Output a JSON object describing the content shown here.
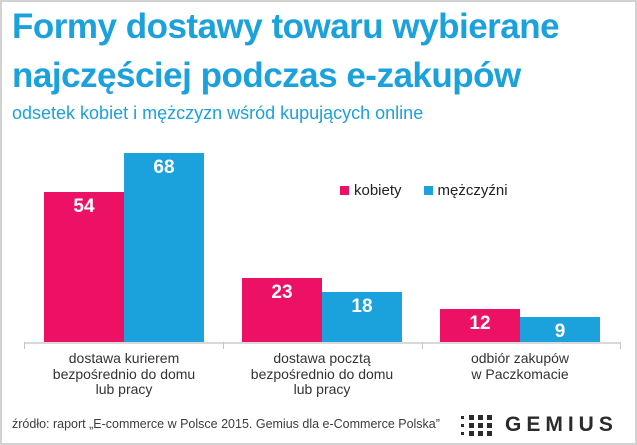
{
  "header": {
    "title_line1": "Formy dostawy towaru wybierane",
    "title_line2": "najczęściej podczas e-zakupów",
    "subtitle": "odsetek kobiet i mężczyzn wśród kupujących online"
  },
  "chart_data": {
    "type": "bar",
    "title": "Formy dostawy towaru wybierane najczęściej podczas e-zakupów",
    "subtitle": "odsetek kobiet i mężczyzn wśród kupujących online",
    "unit": "percent",
    "categories": [
      "dostawa kurierem bezpośrednio do domu lub pracy",
      "dostawa pocztą bezpośrednio do domu lub pracy",
      "odbiór zakupów w Paczkomacie"
    ],
    "category_label_lines": [
      [
        "dostawa kurierem",
        "bezpośrednio do domu",
        "lub pracy"
      ],
      [
        "dostawa pocztą",
        "bezpośrednio do domu",
        "lub pracy"
      ],
      [
        "odbiór zakupów",
        "w Paczkomacie",
        ""
      ]
    ],
    "series": [
      {
        "name": "kobiety",
        "color": "#EC1164",
        "values": [
          54,
          23,
          12
        ]
      },
      {
        "name": "mężczyźni",
        "color": "#1BA1DB",
        "values": [
          68,
          18,
          9
        ]
      }
    ],
    "ylim": [
      0,
      72
    ],
    "grid": false,
    "legend_position": "top-right",
    "value_labels": "inside-top-white"
  },
  "footer": {
    "source": "źródło: raport „E-commerce w Polsce 2015. Gemius dla e-Commerce Polska”",
    "logo_text": "GEMIUS"
  },
  "colors": {
    "accent_blue": "#1BA1DB",
    "accent_pink": "#EC1164",
    "text_dark": "#333333",
    "axis_gray": "#D9D9D9"
  }
}
